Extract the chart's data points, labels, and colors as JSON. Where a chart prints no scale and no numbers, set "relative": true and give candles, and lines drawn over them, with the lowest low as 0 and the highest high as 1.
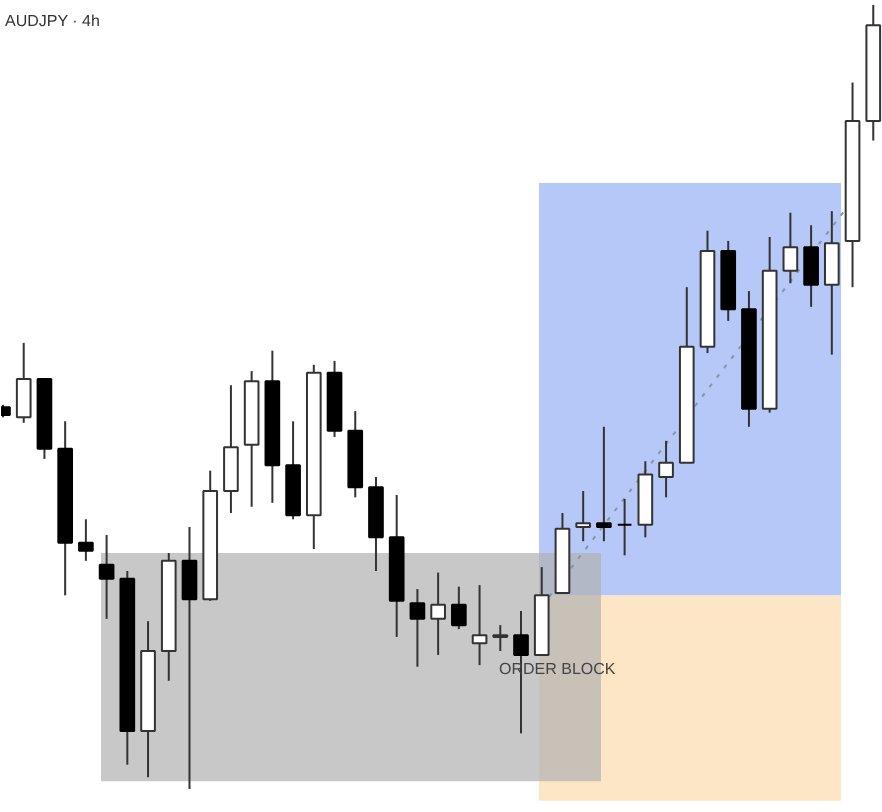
{
  "chart_data": {
    "type": "candlestick",
    "title": "AUDJPY · 4h",
    "relative": true,
    "categories": [
      null,
      null,
      null,
      null,
      null,
      null,
      null,
      null,
      null,
      null,
      null,
      null,
      null,
      null,
      null,
      null,
      null,
      null,
      null,
      null,
      null,
      null,
      null,
      null,
      null,
      null,
      null,
      null,
      null,
      null,
      null,
      null,
      null,
      null,
      null,
      null,
      null,
      null,
      null,
      null,
      null,
      null,
      null
    ],
    "ohlc": [
      [
        0.487,
        0.49,
        0.474,
        0.477
      ],
      [
        0.474,
        0.569,
        0.467,
        0.523
      ],
      [
        0.523,
        0.523,
        0.421,
        0.434
      ],
      [
        0.434,
        0.469,
        0.247,
        0.314
      ],
      [
        0.314,
        0.344,
        0.291,
        0.304
      ],
      [
        0.286,
        0.324,
        0.217,
        0.268
      ],
      [
        0.268,
        0.278,
        0.031,
        0.074
      ],
      [
        0.074,
        0.214,
        0.015,
        0.176
      ],
      [
        0.176,
        0.301,
        0.138,
        0.291
      ],
      [
        0.291,
        0.334,
        0.0,
        0.242
      ],
      [
        0.242,
        0.406,
        0.24,
        0.38
      ],
      [
        0.38,
        0.515,
        0.352,
        0.436
      ],
      [
        0.439,
        0.533,
        0.36,
        0.52
      ],
      [
        0.52,
        0.559,
        0.365,
        0.413
      ],
      [
        0.413,
        0.469,
        0.344,
        0.349
      ],
      [
        0.349,
        0.541,
        0.306,
        0.531
      ],
      [
        0.531,
        0.546,
        0.449,
        0.457
      ],
      [
        0.457,
        0.482,
        0.372,
        0.385
      ],
      [
        0.385,
        0.398,
        0.278,
        0.321
      ],
      [
        0.321,
        0.375,
        0.194,
        0.24
      ],
      [
        0.237,
        0.255,
        0.156,
        0.217
      ],
      [
        0.217,
        0.276,
        0.171,
        0.235
      ],
      [
        0.235,
        0.258,
        0.204,
        0.209
      ],
      [
        0.186,
        0.26,
        0.158,
        0.196
      ],
      [
        0.194,
        0.209,
        0.176,
        0.196
      ],
      [
        0.196,
        0.227,
        0.071,
        0.171
      ],
      [
        0.171,
        0.283,
        0.171,
        0.247
      ],
      [
        0.25,
        0.352,
        0.25,
        0.332
      ],
      [
        0.334,
        0.38,
        0.316,
        0.339
      ],
      [
        0.339,
        0.462,
        0.316,
        0.334
      ],
      [
        0.337,
        0.37,
        0.298,
        0.337
      ],
      [
        0.337,
        0.418,
        0.321,
        0.401
      ],
      [
        0.398,
        0.444,
        0.372,
        0.416
      ],
      [
        0.416,
        0.64,
        0.416,
        0.564
      ],
      [
        0.564,
        0.712,
        0.556,
        0.686
      ],
      [
        0.686,
        0.699,
        0.597,
        0.612
      ],
      [
        0.612,
        0.635,
        0.462,
        0.485
      ],
      [
        0.485,
        0.704,
        0.48,
        0.661
      ],
      [
        0.661,
        0.735,
        0.645,
        0.691
      ],
      [
        0.691,
        0.719,
        0.615,
        0.643
      ],
      [
        0.643,
        0.737,
        0.554,
        0.696
      ],
      [
        0.699,
        0.901,
        0.64,
        0.852
      ],
      [
        0.852,
        1.0,
        0.827,
        0.974
      ]
    ],
    "colors": [
      "#000000",
      "#ffffff",
      "#000000",
      "#000000",
      "#000000",
      "#000000",
      "#000000",
      "#ffffff",
      "#ffffff",
      "#000000",
      "#ffffff",
      "#ffffff",
      "#ffffff",
      "#000000",
      "#000000",
      "#ffffff",
      "#000000",
      "#000000",
      "#000000",
      "#000000",
      "#000000",
      "#ffffff",
      "#000000",
      "#ffffff",
      "#ffffff",
      "#000000",
      "#ffffff",
      "#ffffff",
      "#ffffff",
      "#000000",
      "#000000",
      "#ffffff",
      "#ffffff",
      "#ffffff",
      "#ffffff",
      "#000000",
      "#000000",
      "#ffffff",
      "#ffffff",
      "#000000",
      "#ffffff",
      "#ffffff",
      "#ffffff"
    ],
    "bands": [
      {
        "axis": "y",
        "from": -0.015,
        "to": 0.247,
        "color": "#fde6c6"
      },
      {
        "axis": "y",
        "from": 0.247,
        "to": 0.773,
        "color": "#b6c8f8"
      },
      {
        "axis": "y",
        "from": 0.01,
        "to": 0.301,
        "color": "#b0b0b0"
      }
    ],
    "series": [
      {
        "type": "line",
        "color": "#8a93a8",
        "line_style": "dotted",
        "values": [
          null,
          null,
          null,
          null,
          null,
          null,
          null,
          null,
          null,
          null,
          null,
          null,
          null,
          null,
          null,
          null,
          null,
          null,
          null,
          null,
          null,
          null,
          null,
          null,
          null,
          null,
          0.233,
          null,
          null,
          null,
          null,
          null,
          null,
          null,
          null,
          null,
          null,
          null,
          null,
          null,
          null,
          0.751,
          null
        ]
      }
    ],
    "annotations": [
      "ORDER BLOCK"
    ]
  }
}
